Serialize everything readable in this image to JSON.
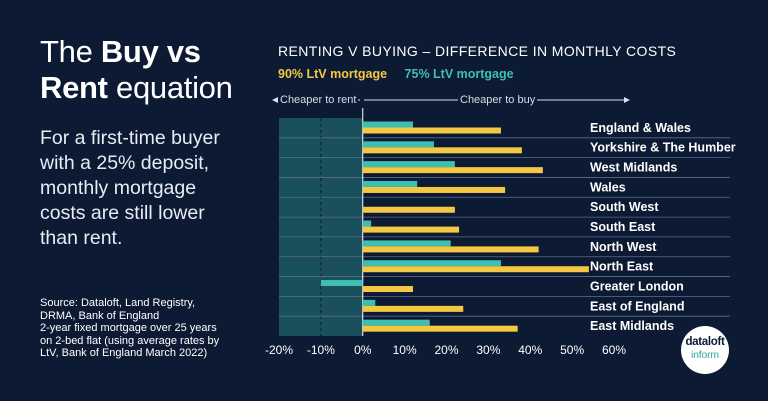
{
  "headline": {
    "part1": "The ",
    "bold1": "Buy vs",
    "bold2": "Rent",
    "part2": " equation"
  },
  "body_text": "For a first-time buyer with a 25% deposit, monthly mortgage costs are still lower than rent.",
  "source": {
    "line1": "Source: Dataloft, Land Registry,",
    "line2": "DRMA, Bank of England",
    "line3": "2-year fixed mortgage over 25 years",
    "line4": "on 2-bed flat (using average rates by",
    "line5": "LtV, Bank of England March 2022)"
  },
  "logo": {
    "line1": "dataloft",
    "line2": "inform"
  },
  "colors": {
    "ltv90": "#f5c843",
    "ltv75": "#3fbfb2",
    "rent_zone": "#1a4f5c",
    "background": "#0c1a33"
  },
  "chart_data": {
    "type": "bar",
    "orientation": "horizontal",
    "title": "RENTING V BUYING – DIFFERENCE IN MONTHLY COSTS",
    "annotations": {
      "left": "Cheaper to rent",
      "right": "Cheaper to buy"
    },
    "categories": [
      "England & Wales",
      "Yorkshire & The Humber",
      "West Midlands",
      "Wales",
      "South West",
      "South East",
      "North West",
      "North East",
      "Greater London",
      "East of England",
      "East Midlands"
    ],
    "series": [
      {
        "name": "90% LtV mortgage",
        "values": [
          33,
          38,
          43,
          34,
          22,
          23,
          42,
          54,
          12,
          24,
          37
        ]
      },
      {
        "name": "75% LtV mortgage",
        "values": [
          12,
          17,
          22,
          13,
          0,
          2,
          21,
          33,
          -10,
          3,
          16
        ]
      }
    ],
    "xlim": [
      -20,
      60
    ],
    "xticks": [
      "-20%",
      "-10%",
      "0%",
      "10%",
      "20%",
      "30%",
      "40%",
      "50%",
      "60%"
    ],
    "legend": "top-left",
    "grid": true
  }
}
